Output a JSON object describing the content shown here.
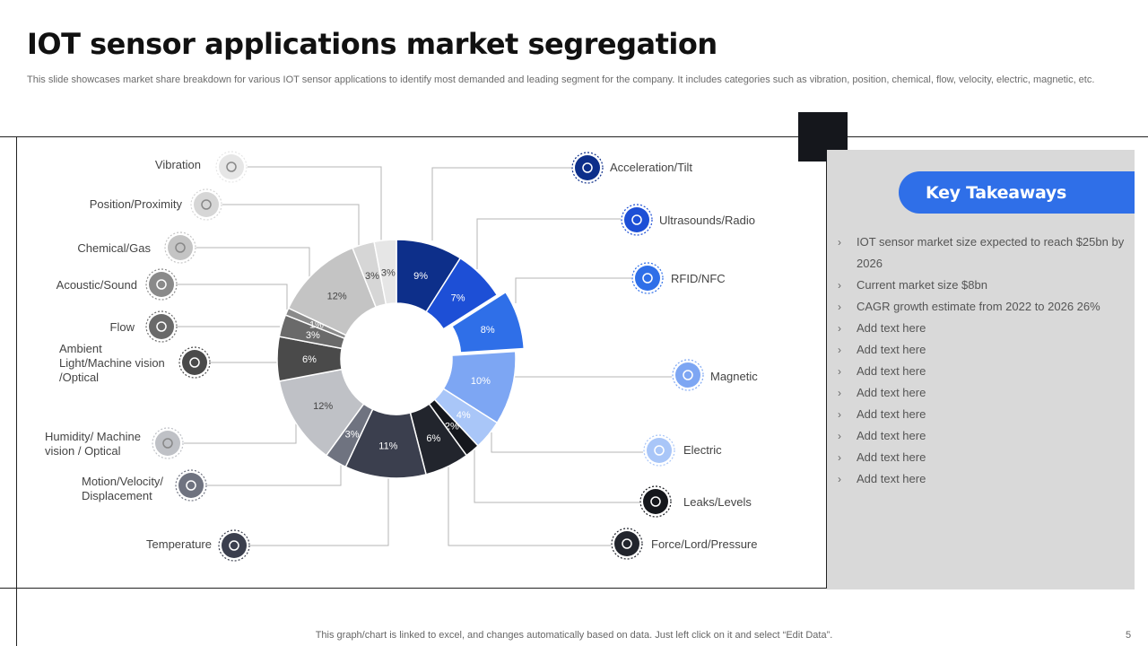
{
  "title": "IOT sensor applications market segregation",
  "subtitle": "This slide showcases market share breakdown for various IOT  sensor applications to identify most demanded and leading segment for the company. It includes categories such as vibration, position, chemical, flow, velocity,  electric, magnetic, etc.",
  "chart_data": {
    "type": "pie",
    "variant": "donut",
    "categories": [
      "Acceleration/Tilt",
      "Ultrasounds/Radio",
      "RFID/NFC",
      "Magnetic",
      "Electric",
      "Leaks/Levels",
      "Force/Lord/Pressure",
      "Temperature",
      "Motion/Velocity/ Displacement",
      "Humidity/ Machine vision  / Optical",
      "Ambient Light/Machine vision /Optical",
      "Flow",
      "Acoustic/Sound",
      "Chemical/Gas",
      "Position/Proximity",
      "Vibration"
    ],
    "values": [
      9,
      7,
      8,
      10,
      4,
      2,
      6,
      11,
      3,
      12,
      6,
      3,
      1,
      12,
      3,
      3
    ],
    "value_labels": [
      "9%",
      "7%",
      "8%",
      "10%",
      "4%",
      "2%",
      "6%",
      "11%",
      "3%",
      "12%",
      "6%",
      "3%",
      "1%",
      "12%",
      "3%",
      "3%"
    ],
    "colors": [
      "#0d2f8a",
      "#1d4fd6",
      "#2f6fe8",
      "#7da6f3",
      "#a9c6f8",
      "#15171c",
      "#22252d",
      "#3b3f4e",
      "#6f7380",
      "#bfc1c6",
      "#4a4a4a",
      "#6a6a6a",
      "#8a8a8a",
      "#c4c4c4",
      "#d6d6d6",
      "#e6e6e6"
    ],
    "exploded": "RFID/NFC",
    "icons": [
      "r-and-d-bulb-icon",
      "monitor-icon",
      "rfid-card-icon",
      "magnet-people-icon",
      "electric-plug-icon",
      "battery-icon",
      "pressure-gauge-icon",
      "thermometer-icon",
      "hand-icon",
      "water-drop-icon",
      "eye-search-icon",
      "faucet-icon",
      "speaker-icon",
      "bottle-icon",
      "location-pin-icon",
      "waveform-icon"
    ]
  },
  "key_takeaways": {
    "heading": "Key Takeaways",
    "items": [
      "IOT  sensor market size expected to reach $25bn by 2026",
      "Current  market size $8bn",
      "CAGR growth  estimate from  2022 to 2026 26%",
      "Add text here",
      "Add text here",
      "Add text here",
      "Add text here",
      "Add text here",
      "Add text here",
      "Add text here",
      "Add text here"
    ]
  },
  "footer": "This graph/chart is linked to excel,  and changes automatically based on data. Just left click on it and select “Edit Data”.",
  "page_number": "5"
}
